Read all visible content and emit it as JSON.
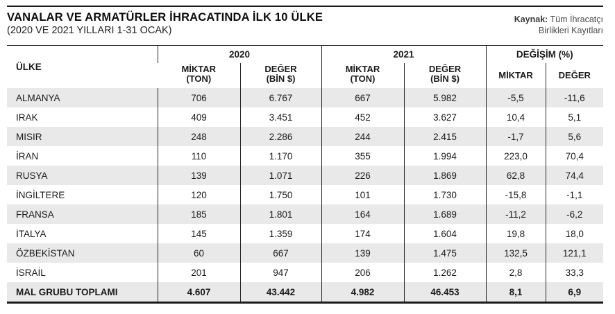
{
  "header": {
    "title": "VANALAR VE ARMATÜRLER İHRACATINDA İLK 10 ÜLKE",
    "subtitle": "(2020 VE 2021 YILLARI 1-31 OCAK)",
    "source_label": "Kaynak:",
    "source_text": "Tüm İhracatçı\nBirlikleri Kayıtları"
  },
  "table": {
    "country_header": "ÜLKE",
    "groups": [
      "2020",
      "2021",
      "DEĞİŞİM (%)"
    ],
    "sub": {
      "m_ton": "MİKTAR\n(TON)",
      "d_bin": "DEĞER\n(BİN $)",
      "m": "MİKTAR",
      "d": "DEĞER"
    },
    "rows": [
      {
        "country": "ALMANYA",
        "m2020": "706",
        "d2020": "6.767",
        "m2021": "667",
        "d2021": "5.982",
        "cm": "-5,5",
        "cd": "-11,6"
      },
      {
        "country": "IRAK",
        "m2020": "409",
        "d2020": "3.451",
        "m2021": "452",
        "d2021": "3.627",
        "cm": "10,4",
        "cd": "5,1"
      },
      {
        "country": "MISIR",
        "m2020": "248",
        "d2020": "2.286",
        "m2021": "244",
        "d2021": "2.415",
        "cm": "-1,7",
        "cd": "5,6"
      },
      {
        "country": "İRAN",
        "m2020": "110",
        "d2020": "1.170",
        "m2021": "355",
        "d2021": "1.994",
        "cm": "223,0",
        "cd": "70,4"
      },
      {
        "country": "RUSYA",
        "m2020": "139",
        "d2020": "1.071",
        "m2021": "226",
        "d2021": "1.869",
        "cm": "62,8",
        "cd": "74,4"
      },
      {
        "country": "İNGİLTERE",
        "m2020": "120",
        "d2020": "1.750",
        "m2021": "101",
        "d2021": "1.730",
        "cm": "-15,8",
        "cd": "-1,1"
      },
      {
        "country": "FRANSA",
        "m2020": "185",
        "d2020": "1.801",
        "m2021": "164",
        "d2021": "1.689",
        "cm": "-11,2",
        "cd": "-6,2"
      },
      {
        "country": "İTALYA",
        "m2020": "145",
        "d2020": "1.359",
        "m2021": "174",
        "d2021": "1.604",
        "cm": "19,8",
        "cd": "18,0"
      },
      {
        "country": "ÖZBEKİSTAN",
        "m2020": "60",
        "d2020": "667",
        "m2021": "139",
        "d2021": "1.475",
        "cm": "132,5",
        "cd": "121,1"
      },
      {
        "country": "İSRAİL",
        "m2020": "201",
        "d2020": "947",
        "m2021": "206",
        "d2021": "1.262",
        "cm": "2,8",
        "cd": "33,3"
      }
    ],
    "total": {
      "country": "MAL GRUBU TOPLAMI",
      "m2020": "4.607",
      "d2020": "43.442",
      "m2021": "4.982",
      "d2021": "46.453",
      "cm": "8,1",
      "cd": "6,9"
    }
  },
  "colors": {
    "row_alt_bg": "#e9e9e9",
    "rule_color": "#1a1a1a",
    "source_text_color": "#4a4a4a"
  },
  "chart_data": {
    "type": "table",
    "title": "VANALAR VE ARMATÜRLER İHRACATINDA İLK 10 ÜLKE",
    "subtitle": "(2020 VE 2021 YILLARI 1-31 OCAK)",
    "source": "Kaynak: Tüm İhracatçı Birlikleri Kayıtları",
    "column_groups": [
      "",
      "2020",
      "2020",
      "2021",
      "2021",
      "DEĞİŞİM (%)",
      "DEĞİŞİM (%)"
    ],
    "columns": [
      "ÜLKE",
      "2020 MİKTAR (TON)",
      "2020 DEĞER (BİN $)",
      "2021 MİKTAR (TON)",
      "2021 DEĞER (BİN $)",
      "DEĞİŞİM MİKTAR (%)",
      "DEĞİŞİM DEĞER (%)"
    ],
    "rows": [
      [
        "ALMANYA",
        706,
        6767,
        667,
        5982,
        -5.5,
        -11.6
      ],
      [
        "IRAK",
        409,
        3451,
        452,
        3627,
        10.4,
        5.1
      ],
      [
        "MISIR",
        248,
        2286,
        244,
        2415,
        -1.7,
        5.6
      ],
      [
        "İRAN",
        110,
        1170,
        355,
        1994,
        223.0,
        70.4
      ],
      [
        "RUSYA",
        139,
        1071,
        226,
        1869,
        62.8,
        74.4
      ],
      [
        "İNGİLTERE",
        120,
        1750,
        101,
        1730,
        -15.8,
        -1.1
      ],
      [
        "FRANSA",
        185,
        1801,
        164,
        1689,
        -11.2,
        -6.2
      ],
      [
        "İTALYA",
        145,
        1359,
        174,
        1604,
        19.8,
        18.0
      ],
      [
        "ÖZBEKİSTAN",
        60,
        667,
        139,
        1475,
        132.5,
        121.1
      ],
      [
        "İSRAİL",
        201,
        947,
        206,
        1262,
        2.8,
        33.3
      ]
    ],
    "total_row": [
      "MAL GRUBU TOPLAMI",
      4607,
      43442,
      4982,
      46453,
      8.1,
      6.9
    ]
  }
}
